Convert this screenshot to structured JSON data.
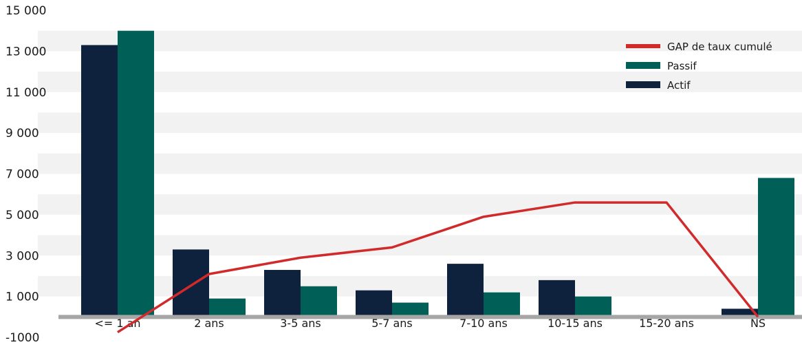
{
  "chart_data": {
    "type": "bar",
    "categories": [
      "<= 1 an",
      "2 ans",
      "3-5 ans",
      "5-7 ans",
      "7-10 ans",
      "10-15 ans",
      "15-20 ans",
      "NS"
    ],
    "series": [
      {
        "name": "Actif",
        "kind": "bar",
        "color": "#0f223d",
        "values": [
          13300,
          3300,
          2300,
          1300,
          2600,
          1800,
          0,
          400
        ]
      },
      {
        "name": "Passif",
        "kind": "bar",
        "color": "#005f57",
        "values": [
          14000,
          900,
          1500,
          700,
          1200,
          1000,
          0,
          6800
        ]
      },
      {
        "name": "GAP de taux cumulé",
        "kind": "line",
        "color": "#d12a2a",
        "values": [
          -750,
          2100,
          2900,
          3400,
          4900,
          5600,
          5600,
          0
        ]
      }
    ],
    "y_ticks": [
      "15 000",
      "13 000",
      "11 000",
      "9 000",
      "7 000",
      "5 000",
      "3 000",
      "1 000",
      "-1000"
    ],
    "y_tick_values": [
      15000,
      13000,
      11000,
      9000,
      7000,
      5000,
      3000,
      1000,
      -1000
    ],
    "ylim": [
      -1000,
      15000
    ],
    "title": "",
    "xlabel": "",
    "ylabel": "",
    "legend": [
      "GAP de taux cumulé",
      "Passif",
      "Actif"
    ],
    "legend_position": "top-right",
    "grid": "horizontal bands",
    "colors": {
      "band": "#f2f2f2",
      "baseline": "#a6a6a6"
    }
  }
}
